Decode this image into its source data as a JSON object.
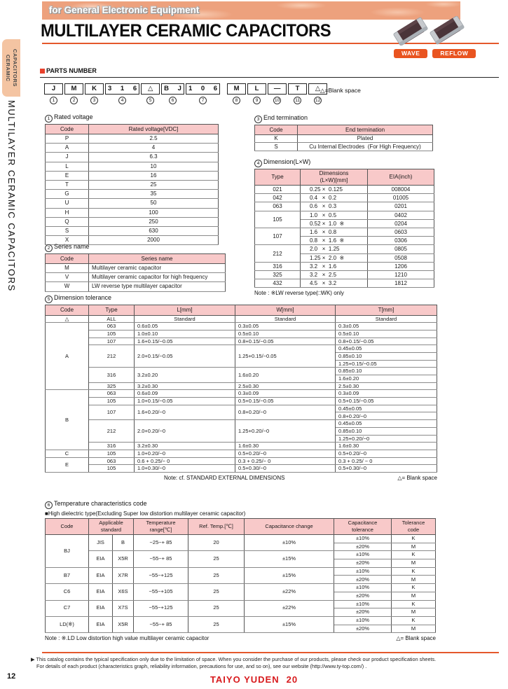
{
  "colors": {
    "accent_orange": "#e4582c",
    "badge_orange": "#e95420",
    "header_pink": "#f8c9c9",
    "banner_salmon": "#eda17d",
    "logo_red": "#d81a1d",
    "chip_brown": "#4a3439",
    "chip_end": "#c6c9cd"
  },
  "page": {
    "banner": "for General Electronic Equipment",
    "title": "MULTILAYER CERAMIC CAPACITORS",
    "sidebar_tab": "CERAMIC\nCAPACITORS",
    "sidebar_title": "MULTILAYER CERAMIC CAPACITORS",
    "badges": {
      "wave": "WAVE",
      "reflow": "REFLOW"
    },
    "parts_section": "PARTS NUMBER",
    "blank_note": "△=Blank space",
    "page_number": "12",
    "logo": "TAIYO YUDEN",
    "logo_number": "20",
    "footer_line1": "This catalog contains the typical specification only due to the limitation of space.  When you consider the purchase of our products, please check our product specification sheets.",
    "footer_line2": "For details of each product (characteristics graph, reliability information, precautions for use, and so on), see our website (http://www.ty-top.com/) ."
  },
  "parts_number": {
    "boxes": [
      "J",
      "M",
      "K",
      "3 1 6",
      "△",
      "B J",
      "1 0 6",
      "M",
      "L",
      "—",
      "T",
      "△"
    ],
    "nums": [
      "1",
      "2",
      "3",
      "4",
      "5",
      "6",
      "7",
      "8",
      "9",
      "10",
      "11",
      "12"
    ]
  },
  "tables": {
    "rated_voltage": {
      "num": "1",
      "label": "Rated voltage",
      "header": [
        [
          "Code",
          "Rated voltage[VDC]"
        ]
      ],
      "rows": [
        [
          "P",
          "2.5"
        ],
        [
          "A",
          "4"
        ],
        [
          "J",
          "6.3"
        ],
        [
          "L",
          "10"
        ],
        [
          "E",
          "16"
        ],
        [
          "T",
          "25"
        ],
        [
          "G",
          "35"
        ],
        [
          "U",
          "50"
        ],
        [
          "H",
          "100"
        ],
        [
          "Q",
          "250"
        ],
        [
          "S",
          "630"
        ],
        [
          "X",
          "2000"
        ]
      ]
    },
    "series_name": {
      "num": "2",
      "label": "Series name",
      "header": [
        [
          "Code",
          "Series name"
        ]
      ],
      "rows": [
        [
          "M",
          {
            "t": "Multilayer ceramic capacitor",
            "al": "l"
          }
        ],
        [
          "V",
          {
            "t": "Multilayer ceramic capacitor for high frequency",
            "al": "l"
          }
        ],
        [
          "W",
          {
            "t": "LW reverse type multilayer capacitor",
            "al": "l"
          }
        ]
      ]
    },
    "end_termination": {
      "num": "3",
      "label": "End termination",
      "header": [
        [
          "Code",
          "End termination"
        ]
      ],
      "rows": [
        [
          "K",
          "Plated"
        ],
        [
          "S",
          "Cu Internal Electrodes  (For High Frequency)"
        ]
      ]
    },
    "dimension": {
      "num": "4",
      "label": "Dimension(L×W)",
      "header": [
        [
          "Type",
          "Dimensions\n(L×W)[mm]",
          "EIA(inch)"
        ]
      ],
      "rows": [
        [
          "021",
          {
            "t": "0.25 ×  0.125",
            "al": "l"
          },
          "008004"
        ],
        {
          "sec": true,
          "c": [
            "042",
            {
              "t": "0.4   ×  0.2",
              "al": "l"
            },
            "01005"
          ]
        },
        {
          "sec": true,
          "c": [
            "063",
            {
              "t": "0.6   ×  0.3",
              "al": "l"
            },
            "0201"
          ]
        },
        {
          "sec": true,
          "c": [
            {
              "t": "105",
              "rs": 2
            },
            {
              "t": "1.0   ×  0.5",
              "al": "l"
            },
            "0402"
          ]
        },
        [
          {
            "t": "0.52 ×  1.0  ※",
            "al": "l"
          },
          "0204"
        ],
        {
          "sec": true,
          "c": [
            {
              "t": "107",
              "rs": 2
            },
            {
              "t": "1.6   ×  0.8",
              "al": "l"
            },
            "0603"
          ]
        },
        [
          {
            "t": "0.8   ×  1.6  ※",
            "al": "l"
          },
          "0306"
        ],
        {
          "sec": true,
          "c": [
            {
              "t": "212",
              "rs": 2
            },
            {
              "t": "2.0   ×  1.25",
              "al": "l"
            },
            "0805"
          ]
        },
        [
          {
            "t": "1.25 ×  2.0  ※",
            "al": "l"
          },
          "0508"
        ],
        {
          "sec": true,
          "c": [
            "316",
            {
              "t": "3.2   ×  1.6",
              "al": "l"
            },
            "1206"
          ]
        },
        {
          "sec": true,
          "c": [
            "325",
            {
              "t": "3.2   ×  2.5",
              "al": "l"
            },
            "1210"
          ]
        },
        {
          "sec": true,
          "c": [
            "432",
            {
              "t": "4.5   ×  3.2",
              "al": "l"
            },
            "1812"
          ]
        }
      ],
      "note": "Note : ※LW reverse type(□WK) only"
    },
    "dimension_tolerance": {
      "num": "5",
      "label": "Dimension tolerance",
      "header": [
        [
          "Code",
          "Type",
          "L[mm]",
          "W[mm]",
          "T[mm]"
        ]
      ],
      "rows": [
        [
          "△",
          "ALL",
          "Standard",
          "Standard",
          "Standard"
        ],
        {
          "sec": true,
          "c": [
            {
              "t": "A",
              "rs": 9
            },
            "063",
            {
              "t": "0.6±0.05",
              "al": "l"
            },
            {
              "t": "0.3±0.05",
              "al": "l"
            },
            {
              "t": "0.3±0.05",
              "al": "l"
            }
          ]
        },
        [
          "105",
          {
            "t": "1.0±0.10",
            "al": "l"
          },
          {
            "t": "0.5±0.10",
            "al": "l"
          },
          {
            "t": "0.5±0.10",
            "al": "l"
          }
        ],
        [
          "107",
          {
            "t": "1.6+0.15/−0.05",
            "al": "l"
          },
          {
            "t": "0.8+0.15/−0.05",
            "al": "l"
          },
          {
            "t": "0.8+0.15/−0.05",
            "al": "l"
          }
        ],
        [
          {
            "t": "212",
            "rs": 3
          },
          {
            "t": "2.0+0.15/−0.05",
            "rs": 3,
            "al": "l"
          },
          {
            "t": "1.25+0.15/−0.05",
            "rs": 3,
            "al": "l"
          },
          {
            "t": "0.45±0.05",
            "al": "l"
          }
        ],
        [
          {
            "t": "0.85±0.10",
            "al": "l"
          }
        ],
        [
          {
            "t": "1.25+0.15/−0.05",
            "al": "l"
          }
        ],
        [
          {
            "t": "316",
            "rs": 2
          },
          {
            "t": "3.2±0.20",
            "rs": 2,
            "al": "l"
          },
          {
            "t": "1.6±0.20",
            "rs": 2,
            "al": "l"
          },
          {
            "t": "0.85±0.10",
            "al": "l"
          }
        ],
        [
          {
            "t": "1.6±0.20",
            "al": "l"
          }
        ],
        [
          "325",
          {
            "t": "3.2±0.30",
            "al": "l"
          },
          {
            "t": "2.5±0.30",
            "al": "l"
          },
          {
            "t": "2.5±0.30",
            "al": "l"
          }
        ],
        {
          "sec": true,
          "c": [
            {
              "t": "B",
              "rs": 8
            },
            "063",
            {
              "t": "0.6±0.09",
              "al": "l"
            },
            {
              "t": "0.3±0.09",
              "al": "l"
            },
            {
              "t": "0.3±0.09",
              "al": "l"
            }
          ]
        },
        [
          "105",
          {
            "t": "1.0+0.15/−0.05",
            "al": "l"
          },
          {
            "t": "0.5+0.15/−0.05",
            "al": "l"
          },
          {
            "t": "0.5+0.15/−0.05",
            "al": "l"
          }
        ],
        [
          {
            "t": "107",
            "rs": 2
          },
          {
            "t": "1.6+0.20/−0",
            "rs": 2,
            "al": "l"
          },
          {
            "t": "0.8+0.20/−0",
            "rs": 2,
            "al": "l"
          },
          {
            "t": "0.45±0.05",
            "al": "l"
          }
        ],
        [
          {
            "t": "0.8+0.20/−0",
            "al": "l"
          }
        ],
        [
          {
            "t": "212",
            "rs": 3
          },
          {
            "t": "2.0+0.20/−0",
            "rs": 3,
            "al": "l"
          },
          {
            "t": "1.25+0.20/−0",
            "rs": 3,
            "al": "l"
          },
          {
            "t": "0.45±0.05",
            "al": "l"
          }
        ],
        [
          {
            "t": "0.85±0.10",
            "al": "l"
          }
        ],
        [
          {
            "t": "1.25+0.20/−0",
            "al": "l"
          }
        ],
        [
          "316",
          {
            "t": "3.2±0.30",
            "al": "l"
          },
          {
            "t": "1.6±0.30",
            "al": "l"
          },
          {
            "t": "1.6±0.30",
            "al": "l"
          }
        ],
        {
          "sec": true,
          "c": [
            "C",
            "105",
            {
              "t": "1.0+0.20/−0",
              "al": "l"
            },
            {
              "t": "0.5+0.20/−0",
              "al": "l"
            },
            {
              "t": "0.5+0.20/−0",
              "al": "l"
            }
          ]
        },
        {
          "sec": true,
          "c": [
            {
              "t": "E",
              "rs": 2
            },
            "063",
            {
              "t": "0.6 + 0.25/− 0",
              "al": "l"
            },
            {
              "t": "0.3 + 0.25/− 0",
              "al": "l"
            },
            {
              "t": "0.3 + 0.25/ − 0",
              "al": "l"
            }
          ]
        },
        [
          "105",
          {
            "t": "1.0+0.30/−0",
            "al": "l"
          },
          {
            "t": "0.5+0.30/−0",
            "al": "l"
          },
          {
            "t": "0.5+0.30/−0",
            "al": "l"
          }
        ]
      ],
      "note_left": "Note: cf. STANDARD EXTERNAL DIMENSIONS",
      "note_right": "△= Blank space"
    },
    "temperature": {
      "num": "6",
      "label": "Temperature characteristics code",
      "sublabel": "■High dielectric type(Excluding Super low distortion multilayer ceramic capacitor)",
      "header": [
        [
          "Code",
          {
            "t": "Applicable\nstandard",
            "cs": 2
          },
          "Temperature\nrange[℃]",
          "Ref. Temp.[℃]",
          "Capacitance change",
          "Capacitance\ntolerance",
          "Tolerance\ncode"
        ]
      ],
      "rows": [
        [
          {
            "t": "BJ",
            "rs": 4
          },
          {
            "t": "JIS",
            "rs": 2
          },
          {
            "t": "B",
            "rs": 2
          },
          {
            "t": "−25~+ 85",
            "rs": 2
          },
          {
            "t": "20",
            "rs": 2
          },
          {
            "t": "±10%",
            "rs": 2
          },
          "±10%",
          "K"
        ],
        [
          "±20%",
          "M"
        ],
        [
          {
            "t": "EIA",
            "rs": 2
          },
          {
            "t": "X5R",
            "rs": 2
          },
          {
            "t": "−55~+ 85",
            "rs": 2
          },
          {
            "t": "25",
            "rs": 2
          },
          {
            "t": "±15%",
            "rs": 2
          },
          "±10%",
          "K"
        ],
        [
          "±20%",
          "M"
        ],
        {
          "sec": true,
          "c": [
            {
              "t": "B7",
              "rs": 2
            },
            {
              "t": "EIA",
              "rs": 2
            },
            {
              "t": "X7R",
              "rs": 2
            },
            {
              "t": "−55~+125",
              "rs": 2
            },
            {
              "t": "25",
              "rs": 2
            },
            {
              "t": "±15%",
              "rs": 2
            },
            "±10%",
            "K"
          ]
        },
        [
          "±20%",
          "M"
        ],
        {
          "sec": true,
          "c": [
            {
              "t": "C6",
              "rs": 2
            },
            {
              "t": "EIA",
              "rs": 2
            },
            {
              "t": "X6S",
              "rs": 2
            },
            {
              "t": "−55~+105",
              "rs": 2
            },
            {
              "t": "25",
              "rs": 2
            },
            {
              "t": "±22%",
              "rs": 2
            },
            "±10%",
            "K"
          ]
        },
        [
          "±20%",
          "M"
        ],
        {
          "sec": true,
          "c": [
            {
              "t": "C7",
              "rs": 2
            },
            {
              "t": "EIA",
              "rs": 2
            },
            {
              "t": "X7S",
              "rs": 2
            },
            {
              "t": "−55~+125",
              "rs": 2
            },
            {
              "t": "25",
              "rs": 2
            },
            {
              "t": "±22%",
              "rs": 2
            },
            "±10%",
            "K"
          ]
        },
        [
          "±20%",
          "M"
        ],
        {
          "sec": true,
          "c": [
            {
              "t": "LD(※)",
              "rs": 2
            },
            {
              "t": "EIA",
              "rs": 2
            },
            {
              "t": "X5R",
              "rs": 2
            },
            {
              "t": "−55~+ 85",
              "rs": 2
            },
            {
              "t": "25",
              "rs": 2
            },
            {
              "t": "±15%",
              "rs": 2
            },
            "±10%",
            "K"
          ]
        },
        [
          "±20%",
          "M"
        ]
      ],
      "note_left": "Note : ※.LD Low distortion high value multilayer ceramic capacitor",
      "note_right": "△= Blank space"
    }
  }
}
